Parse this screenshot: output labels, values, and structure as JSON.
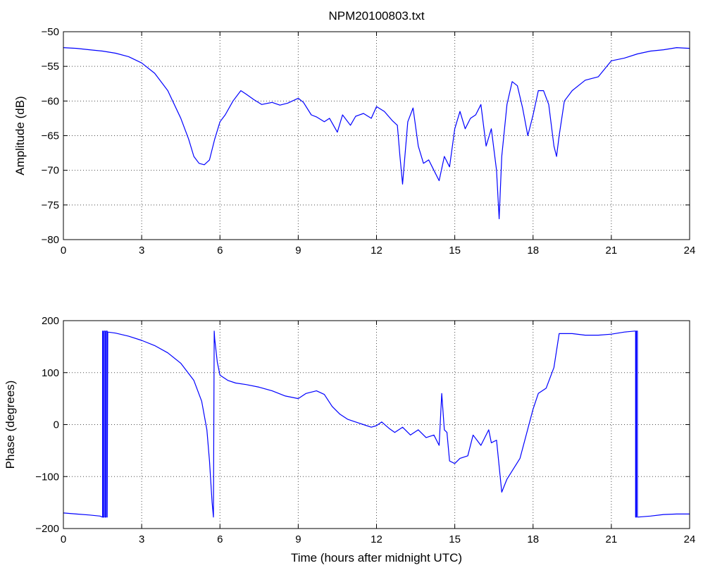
{
  "chart_data": [
    {
      "type": "line",
      "title": "NPM20100803.txt",
      "xlabel": "",
      "ylabel": "Amplitude (dB)",
      "xlim": [
        0,
        24
      ],
      "ylim": [
        -80,
        -50
      ],
      "x_ticks": [
        "0",
        "3",
        "6",
        "9",
        "12",
        "15",
        "18",
        "21",
        "24"
      ],
      "y_ticks": [
        "-50",
        "-55",
        "-60",
        "-65",
        "-70",
        "-75",
        "-80"
      ],
      "grid": true,
      "color": "#0000ff",
      "series": [
        {
          "x": [
            0,
            0.5,
            1,
            1.5,
            2,
            2.5,
            3,
            3.5,
            4,
            4.5,
            4.8,
            5.0,
            5.2,
            5.4,
            5.6,
            5.8,
            6.0,
            6.2,
            6.5,
            6.8,
            7.0,
            7.3,
            7.6,
            8.0,
            8.3,
            8.6,
            9.0,
            9.2,
            9.5,
            9.7,
            10.0,
            10.2,
            10.5,
            10.7,
            11.0,
            11.2,
            11.5,
            11.8,
            12.0,
            12.3,
            12.6,
            12.8,
            12.9,
            13.0,
            13.2,
            13.4,
            13.6,
            13.8,
            14.0,
            14.2,
            14.4,
            14.6,
            14.8,
            15.0,
            15.2,
            15.4,
            15.6,
            15.8,
            16.0,
            16.2,
            16.4,
            16.6,
            16.7,
            16.8,
            17.0,
            17.2,
            17.4,
            17.6,
            17.8,
            18.0,
            18.2,
            18.4,
            18.6,
            18.8,
            18.9,
            19.0,
            19.2,
            19.5,
            20.0,
            20.5,
            21.0,
            21.5,
            22.0,
            22.5,
            23.0,
            23.5,
            24.0
          ],
          "y": [
            -52.3,
            -52.4,
            -52.6,
            -52.8,
            -53.1,
            -53.6,
            -54.5,
            -56.0,
            -58.5,
            -62.5,
            -65.5,
            -68.0,
            -69.0,
            -69.2,
            -68.5,
            -65.5,
            -63.0,
            -62.0,
            -60.0,
            -58.5,
            -59.0,
            -59.8,
            -60.5,
            -60.2,
            -60.6,
            -60.3,
            -59.6,
            -60.2,
            -62.0,
            -62.3,
            -63.0,
            -62.5,
            -64.5,
            -62.0,
            -63.5,
            -62.2,
            -61.8,
            -62.5,
            -60.8,
            -61.5,
            -62.8,
            -63.5,
            -68.0,
            -72.0,
            -63.0,
            -61.0,
            -66.5,
            -69.0,
            -68.5,
            -70.0,
            -71.5,
            -68.0,
            -69.5,
            -64.0,
            -61.5,
            -64.0,
            -62.5,
            -62.0,
            -60.5,
            -66.5,
            -64.0,
            -70.0,
            -77.0,
            -68.0,
            -60.5,
            -57.2,
            -57.8,
            -61.0,
            -65.0,
            -62.0,
            -58.5,
            -58.5,
            -60.5,
            -66.5,
            -68.0,
            -65.0,
            -60.0,
            -58.5,
            -57.0,
            -56.5,
            -54.2,
            -53.8,
            -53.2,
            -52.8,
            -52.6,
            -52.3,
            -52.4
          ]
        }
      ]
    },
    {
      "type": "line",
      "title": "",
      "xlabel": "Time (hours after midnight UTC)",
      "ylabel": "Phase (degrees)",
      "xlim": [
        0,
        24
      ],
      "ylim": [
        -200,
        200
      ],
      "x_ticks": [
        "0",
        "3",
        "6",
        "9",
        "12",
        "15",
        "18",
        "21",
        "24"
      ],
      "y_ticks": [
        "200",
        "100",
        "0",
        "-100",
        "-200"
      ],
      "grid": true,
      "color": "#0000ff",
      "series": [
        {
          "x": [
            0,
            0.5,
            1.0,
            1.4,
            1.5,
            1.5,
            1.52,
            1.52,
            1.56,
            1.56,
            1.6,
            1.6,
            1.64,
            1.64,
            1.68,
            1.68,
            1.7,
            2.0,
            2.5,
            3.0,
            3.5,
            4.0,
            4.5,
            5.0,
            5.3,
            5.5,
            5.6,
            5.7,
            5.75,
            5.78,
            5.8,
            5.9,
            6.0,
            6.3,
            6.6,
            7.0,
            7.5,
            8.0,
            8.5,
            9.0,
            9.3,
            9.7,
            10.0,
            10.3,
            10.6,
            10.9,
            11.2,
            11.5,
            11.8,
            12.0,
            12.2,
            12.5,
            12.7,
            13.0,
            13.3,
            13.6,
            13.9,
            14.2,
            14.4,
            14.5,
            14.6,
            14.7,
            14.8,
            15.0,
            15.2,
            15.5,
            15.7,
            16.0,
            16.3,
            16.4,
            16.6,
            16.8,
            17.0,
            17.5,
            18.0,
            18.2,
            18.5,
            18.8,
            19.0,
            19.2,
            19.5,
            20.0,
            20.5,
            21.0,
            21.5,
            21.9,
            21.93,
            21.93,
            21.96,
            21.96,
            22.0,
            22.0,
            22.5,
            23.0,
            23.5,
            24.0
          ],
          "y": [
            -170,
            -172,
            -174,
            -176,
            -178,
            180,
            180,
            -178,
            -178,
            180,
            180,
            -178,
            -178,
            180,
            180,
            -178,
            178,
            176,
            170,
            162,
            152,
            138,
            118,
            85,
            45,
            -10,
            -70,
            -150,
            -178,
            180,
            165,
            120,
            95,
            85,
            80,
            77,
            72,
            65,
            55,
            50,
            60,
            65,
            58,
            35,
            20,
            10,
            5,
            0,
            -5,
            -2,
            5,
            -8,
            -15,
            -5,
            -20,
            -10,
            -25,
            -20,
            -40,
            60,
            -10,
            -15,
            -70,
            -75,
            -65,
            -60,
            -20,
            -40,
            -10,
            -35,
            -30,
            -130,
            -105,
            -65,
            30,
            60,
            70,
            110,
            175,
            175,
            175,
            172,
            172,
            174,
            178,
            180,
            180,
            -178,
            -178,
            180,
            180,
            -178,
            -176,
            -173,
            -172,
            -172
          ]
        }
      ]
    }
  ]
}
